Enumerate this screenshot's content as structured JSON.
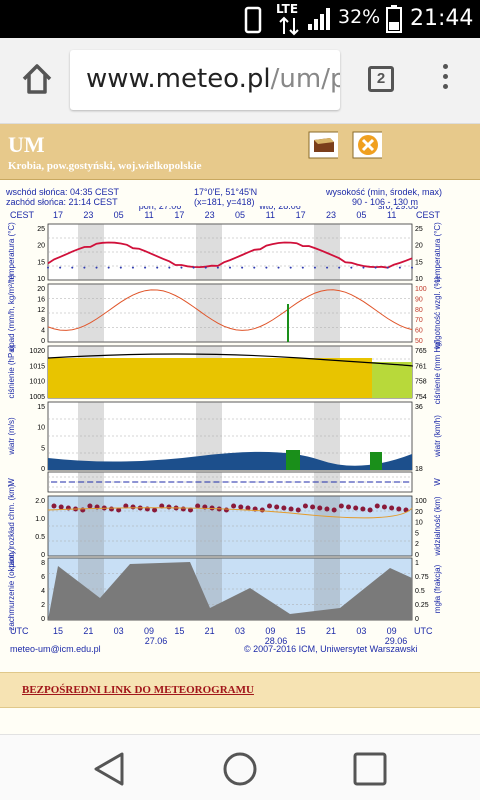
{
  "status": {
    "battery_pct": "32%",
    "time": "21:44",
    "network": "LTE"
  },
  "browser": {
    "url_host": "www.meteo.pl",
    "url_path": "/um/p",
    "tab_count": "2"
  },
  "meteogram": {
    "title": "UM",
    "location": "Krobia, pow.gostyński, woj.wielkopolskie",
    "sunrise": "wschód słońca: 04:35 CEST",
    "sunset": "zachód słońca: 21:14 CEST",
    "coords": "17°0'E, 51°45'N",
    "grid": "(x=181, y=418)",
    "elevation_label": "wysokość (min, środek, max)",
    "elevation_values": "90 - 106 - 130 m",
    "timezone_top": "CEST",
    "timezone_bottom": "UTC",
    "top_hours": [
      "17",
      "23",
      "05",
      "11",
      "17",
      "23",
      "05",
      "11",
      "17",
      "23",
      "05",
      "11"
    ],
    "bottom_hours": [
      "15",
      "21",
      "03",
      "09",
      "15",
      "21",
      "03",
      "09",
      "15",
      "21",
      "03",
      "09"
    ],
    "top_days": [
      "pon, 27.06",
      "wto, 28.06",
      "śro, 29.06"
    ],
    "bottom_days": [
      "27.06",
      "28.06",
      "29.06"
    ],
    "panels": [
      {
        "left": "temperatura (°C)",
        "right": "temperatura (°C)",
        "ticks": [
          "25",
          "20",
          "15",
          "10"
        ]
      },
      {
        "left": "opad (mm/h, kg/m²/h)",
        "right": "wilgotność wzgl. (%)",
        "ticks": [
          "20",
          "16",
          "12",
          "8",
          "4",
          "0"
        ],
        "rticks": [
          "100",
          "90",
          "80",
          "70",
          "60",
          "50"
        ]
      },
      {
        "left": "ciśnienie (hPa)",
        "right": "ciśnienie (mm Hg)",
        "ticks": [
          "1020",
          "1015",
          "1010",
          "1005"
        ],
        "rticks": [
          "765",
          "761",
          "758",
          "754"
        ]
      },
      {
        "left": "wiatr (m/s)",
        "right": "wiatr (km/h)",
        "ticks": [
          "15",
          "10",
          "5",
          "0"
        ],
        "rticks": [
          "36",
          "18"
        ]
      },
      {
        "left": "W",
        "right": "W",
        "ticks": []
      },
      {
        "left": "pion. rozkład chm. (km)",
        "right": "widzialność (km)",
        "ticks": [
          "2.0",
          "1.0",
          "0.5",
          "0"
        ],
        "rticks": [
          "100",
          "20",
          "10",
          "5",
          "2",
          "0"
        ]
      },
      {
        "left": "zachmurzenie (oktanty)",
        "right": "mgła (frakcja)",
        "ticks": [
          "8",
          "6",
          "4",
          "2",
          "0"
        ],
        "rticks": [
          "1",
          "0.75",
          "0.5",
          "0.25",
          "0"
        ]
      }
    ],
    "contact": "meteo-um@icm.edu.pl",
    "copyright": "© 2007-2016 ICM, Uniwersytet Warszawski"
  },
  "direct_link": "BEZPOŚREDNI LINK DO METEOROGRAMU",
  "colors": {
    "temp": "#d0103a",
    "humidity": "#e0552a",
    "pressure": "#e8c400",
    "cloud_blue": "#6fa8e6",
    "wind_green": "#1a8f1a"
  }
}
